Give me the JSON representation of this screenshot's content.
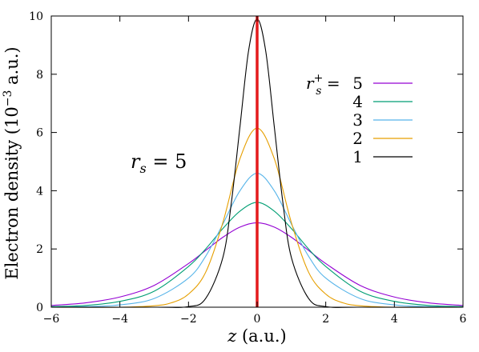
{
  "chart_data": {
    "type": "line",
    "title": "",
    "xlabel": "z (a.u.)",
    "xlabel_parts": {
      "var": "z",
      "rest": " (a.u.)"
    },
    "ylabel": "Electron density (10⁻³ a.u.)",
    "ylabel_parts": {
      "main": "Electron density (10",
      "exp": "−3",
      "rest": " a.u.)"
    },
    "xlim": [
      -6,
      6
    ],
    "ylim": [
      0,
      10
    ],
    "x_ticks": [
      "−6",
      "−4",
      "−2",
      "0",
      "2",
      "4",
      "6"
    ],
    "x_tick_values": [
      -6,
      -4,
      -2,
      0,
      2,
      4,
      6
    ],
    "y_ticks": [
      "0",
      "2",
      "4",
      "6",
      "8",
      "10"
    ],
    "y_tick_values": [
      0,
      2,
      4,
      6,
      8,
      10
    ],
    "grid": false,
    "legend_placement": "top-right",
    "legend_header": {
      "var": "r",
      "sub": "s",
      "sup": "+",
      "eq": " = "
    },
    "annotation": {
      "var": "r",
      "sub": "s",
      "eq": " = 5"
    },
    "vertical_line": {
      "x": 0,
      "color": "#e41a1c"
    },
    "series": [
      {
        "name": "5",
        "color": "#9400d3",
        "peak": 2.9,
        "x": [
          -6,
          -5,
          -4,
          -3,
          -2,
          -1.5,
          -1,
          -0.5,
          0,
          0.5,
          1,
          1.5,
          2,
          3,
          4,
          5,
          6
        ],
        "y": [
          0.06,
          0.15,
          0.35,
          0.75,
          1.5,
          1.95,
          2.4,
          2.75,
          2.9,
          2.75,
          2.4,
          1.95,
          1.5,
          0.75,
          0.35,
          0.15,
          0.06
        ]
      },
      {
        "name": "4",
        "color": "#009e73",
        "peak": 3.6,
        "x": [
          -6,
          -5,
          -4,
          -3,
          -2,
          -1.5,
          -1,
          -0.5,
          0,
          0.5,
          1,
          1.5,
          2,
          3,
          4,
          5,
          6
        ],
        "y": [
          0.02,
          0.06,
          0.2,
          0.55,
          1.4,
          2.0,
          2.7,
          3.3,
          3.6,
          3.3,
          2.7,
          2.0,
          1.4,
          0.55,
          0.2,
          0.06,
          0.02
        ]
      },
      {
        "name": "3",
        "color": "#56b4e9",
        "peak": 4.6,
        "x": [
          -6,
          -5,
          -4,
          -3,
          -2,
          -1.5,
          -1,
          -0.5,
          0,
          0.5,
          1,
          1.5,
          2,
          3,
          4,
          5,
          6
        ],
        "y": [
          0,
          0.02,
          0.08,
          0.3,
          1.0,
          1.75,
          2.85,
          4.0,
          4.6,
          4.0,
          2.85,
          1.75,
          1.0,
          0.3,
          0.08,
          0.02,
          0
        ]
      },
      {
        "name": "2",
        "color": "#e69f00",
        "peak": 6.15,
        "x": [
          -6,
          -4,
          -3,
          -2.5,
          -2,
          -1.5,
          -1,
          -0.5,
          0,
          0.5,
          1,
          1.5,
          2,
          2.5,
          3,
          4,
          6
        ],
        "y": [
          0,
          0,
          0.05,
          0.15,
          0.45,
          1.2,
          2.9,
          5.1,
          6.15,
          5.1,
          2.9,
          1.2,
          0.45,
          0.15,
          0.05,
          0,
          0
        ]
      },
      {
        "name": "1",
        "color": "#000000",
        "peak": 9.9,
        "x": [
          -6,
          -3,
          -2,
          -1.5,
          -1,
          -0.75,
          -0.5,
          -0.25,
          0,
          0.25,
          0.5,
          0.75,
          1,
          1.5,
          2,
          3,
          6
        ],
        "y": [
          0,
          0,
          0.02,
          0.3,
          1.7,
          3.6,
          6.2,
          8.8,
          9.9,
          8.8,
          6.2,
          3.6,
          1.7,
          0.3,
          0.02,
          0,
          0
        ]
      }
    ]
  }
}
